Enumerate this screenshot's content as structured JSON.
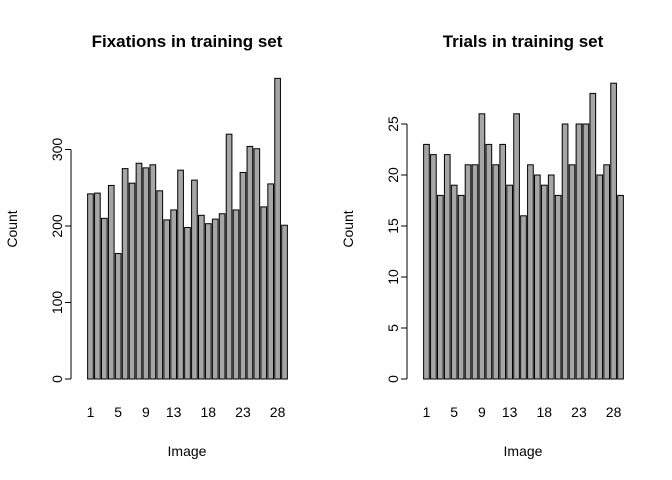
{
  "chart_data": [
    {
      "type": "bar",
      "title": "Fixations in training set",
      "xlabel": "Image",
      "ylabel": "Count",
      "categories": [
        "1",
        "2",
        "3",
        "4",
        "5",
        "6",
        "7",
        "8",
        "9",
        "10",
        "11",
        "12",
        "13",
        "14",
        "15",
        "16",
        "17",
        "18",
        "19",
        "20",
        "21",
        "22",
        "23",
        "24",
        "25",
        "26",
        "27",
        "28",
        "29"
      ],
      "values": [
        242,
        243,
        210,
        253,
        164,
        275,
        256,
        282,
        276,
        280,
        246,
        208,
        221,
        273,
        198,
        260,
        214,
        203,
        209,
        216,
        320,
        221,
        270,
        304,
        301,
        225,
        255,
        393,
        201
      ],
      "ylim": [
        0,
        400
      ],
      "yticks": [
        0,
        100,
        200,
        300
      ],
      "xtick_labels": [
        "1",
        "5",
        "9",
        "13",
        "18",
        "23",
        "28"
      ],
      "grid": false,
      "bar_color": "#a6a6a6"
    },
    {
      "type": "bar",
      "title": "Trials in training set",
      "xlabel": "Image",
      "ylabel": "Count",
      "categories": [
        "1",
        "2",
        "3",
        "4",
        "5",
        "6",
        "7",
        "8",
        "9",
        "10",
        "11",
        "12",
        "13",
        "14",
        "15",
        "16",
        "17",
        "18",
        "19",
        "20",
        "21",
        "22",
        "23",
        "24",
        "25",
        "26",
        "27",
        "28",
        "29"
      ],
      "values": [
        23,
        22,
        18,
        22,
        19,
        18,
        21,
        21,
        26,
        23,
        21,
        23,
        19,
        26,
        16,
        21,
        20,
        19,
        20,
        18,
        25,
        21,
        25,
        25,
        28,
        20,
        21,
        29,
        18
      ],
      "ylim": [
        0,
        30
      ],
      "yticks": [
        0,
        5,
        10,
        15,
        20,
        25
      ],
      "xtick_labels": [
        "1",
        "5",
        "9",
        "13",
        "18",
        "23",
        "28"
      ],
      "grid": false,
      "bar_color": "#a6a6a6"
    }
  ]
}
